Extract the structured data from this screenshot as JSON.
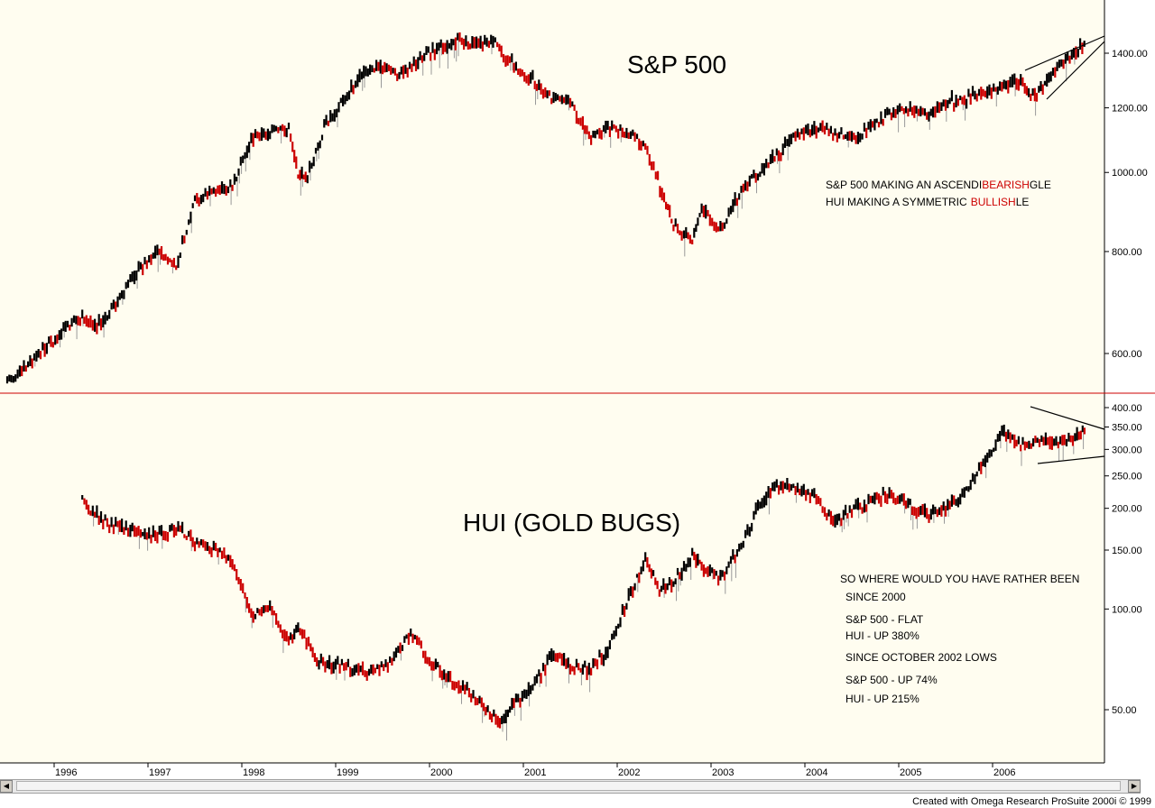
{
  "colors": {
    "background": "#fffdf0",
    "up_bar": "#000000",
    "down_bar": "#cc0000",
    "accent_red": "#cc0000"
  },
  "footer": "Created with Omega Research ProSuite 2000i © 1999",
  "chart_data": [
    {
      "type": "line",
      "title": "S&P 500",
      "scale": "log",
      "ylim": [
        520,
        1480
      ],
      "y_ticks": [
        600,
        800,
        1000,
        1200,
        1400
      ],
      "y_tick_labels": [
        "600.00",
        "800.00",
        "1000.00",
        "1200.00",
        "1400.00"
      ],
      "x_ticks": [
        "1996",
        "1997",
        "1998",
        "1999",
        "2000",
        "2001",
        "2002",
        "2003",
        "2004",
        "2005",
        "2006"
      ],
      "series": [
        {
          "x": [
            1995.5,
            1995.7,
            1995.9,
            1996.1,
            1996.3,
            1996.5,
            1996.7,
            1996.9,
            1997.1,
            1997.3,
            1997.5,
            1997.7,
            1997.9,
            1998.1,
            1998.3,
            1998.5,
            1998.6,
            1998.7,
            1998.9,
            1999.1,
            1999.3,
            1999.5,
            1999.7,
            1999.9,
            2000.1,
            2000.3,
            2000.5,
            2000.7,
            2000.9,
            2001.1,
            2001.3,
            2001.5,
            2001.7,
            2001.9,
            2002.1,
            2002.3,
            2002.5,
            2002.6,
            2002.8,
            2002.9,
            2003.1,
            2003.3,
            2003.5,
            2003.7,
            2003.9,
            2004.1,
            2004.3,
            2004.5,
            2004.7,
            2004.9,
            2005.1,
            2005.3,
            2005.5,
            2005.7,
            2005.9,
            2006.1,
            2006.3,
            2006.45,
            2006.6,
            2006.8,
            2007.0
          ],
          "y": [
            555,
            575,
            610,
            640,
            660,
            650,
            700,
            760,
            800,
            770,
            920,
            950,
            960,
            1100,
            1120,
            1130,
            1000,
            990,
            1150,
            1240,
            1320,
            1350,
            1320,
            1380,
            1420,
            1450,
            1430,
            1440,
            1350,
            1300,
            1230,
            1220,
            1100,
            1140,
            1120,
            1080,
            930,
            860,
            820,
            900,
            850,
            940,
            1000,
            1050,
            1110,
            1130,
            1120,
            1100,
            1130,
            1180,
            1200,
            1180,
            1220,
            1230,
            1250,
            1270,
            1290,
            1240,
            1300,
            1380,
            1440
          ]
        }
      ]
    },
    {
      "type": "line",
      "title": "HUI (GOLD BUGS)",
      "scale": "log",
      "ylim": [
        42,
        430
      ],
      "y_ticks": [
        50,
        100,
        150,
        200,
        250,
        300,
        350,
        400
      ],
      "y_tick_labels": [
        "50.00",
        "100.00",
        "150.00",
        "200.00",
        "250.00",
        "300.00",
        "350.00",
        "400.00"
      ],
      "x_ticks": [
        "1996",
        "1997",
        "1998",
        "1999",
        "2000",
        "2001",
        "2002",
        "2003",
        "2004",
        "2005",
        "2006"
      ],
      "series": [
        {
          "x": [
            1996.3,
            1996.5,
            1996.7,
            1996.9,
            1997.1,
            1997.3,
            1997.5,
            1997.7,
            1997.9,
            1998.1,
            1998.3,
            1998.5,
            1998.6,
            1998.8,
            1999.0,
            1999.2,
            1999.4,
            1999.6,
            1999.8,
            2000.0,
            2000.2,
            2000.4,
            2000.6,
            2000.75,
            2000.9,
            2001.1,
            2001.3,
            2001.5,
            2001.7,
            2001.9,
            2002.1,
            2002.3,
            2002.45,
            2002.6,
            2002.8,
            2002.9,
            2003.1,
            2003.3,
            2003.5,
            2003.7,
            2003.9,
            2004.1,
            2004.3,
            2004.5,
            2004.7,
            2004.9,
            2005.1,
            2005.3,
            2005.5,
            2005.7,
            2005.9,
            2006.1,
            2006.3,
            2006.5,
            2006.7,
            2006.9,
            2007.0
          ],
          "y": [
            210,
            185,
            175,
            170,
            165,
            175,
            160,
            150,
            140,
            95,
            100,
            80,
            90,
            70,
            68,
            66,
            65,
            70,
            85,
            70,
            62,
            58,
            50,
            46,
            52,
            58,
            72,
            68,
            66,
            75,
            105,
            140,
            115,
            120,
            145,
            135,
            125,
            150,
            200,
            235,
            230,
            220,
            180,
            195,
            210,
            220,
            205,
            190,
            200,
            220,
            270,
            340,
            310,
            320,
            310,
            330,
            345
          ]
        }
      ]
    }
  ],
  "annotations": {
    "sp_pattern_line1_prefix": "S&P 500 MAKING AN ASCENDI",
    "sp_pattern_line1_red": "BEARISH",
    "sp_pattern_line1_suffix": "GLE",
    "sp_pattern_line2_prefix": "HUI MAKING A SYMMETRIC",
    "sp_pattern_line2_red": "BULLISH",
    "sp_pattern_line2_suffix": "LE",
    "summary": [
      "SO WHERE WOULD YOU HAVE RATHER BEEN",
      "SINCE 2000",
      "S&P 500 - FLAT",
      "HUI - UP 380%",
      "SINCE OCTOBER 2002 LOWS",
      "S&P 500 - UP 74%",
      "HUI - UP 215%"
    ]
  }
}
